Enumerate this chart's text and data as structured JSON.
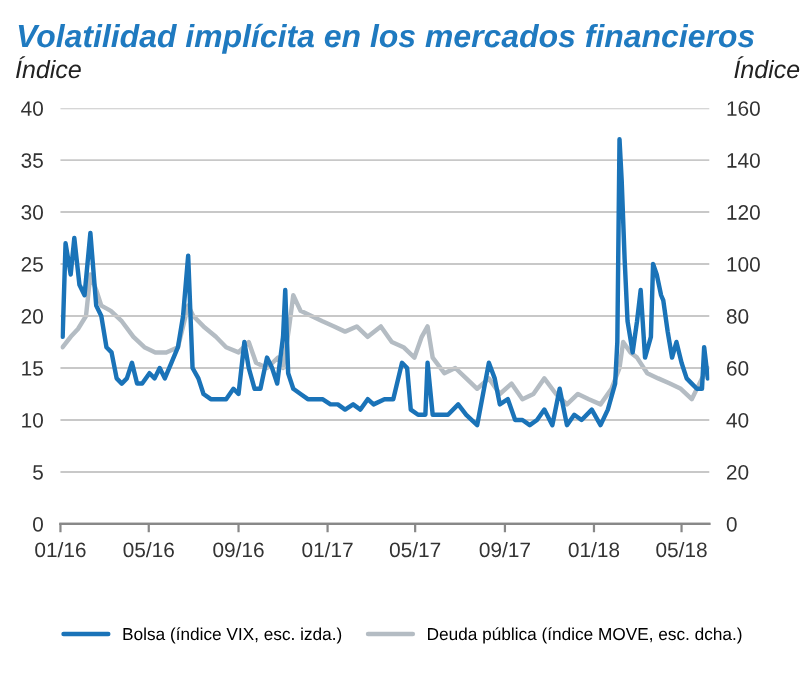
{
  "chart_data": {
    "type": "line",
    "title": "Volatilidad implícita en los mercados financieros",
    "ylabel": "Índice",
    "y2label": "Índice",
    "xlim": [
      "2016-01-01",
      "2018-06-08"
    ],
    "xticks": [
      {
        "value": "2016-01-01",
        "label": "01/16"
      },
      {
        "value": "2016-05-01",
        "label": "05/16"
      },
      {
        "value": "2016-09-01",
        "label": "09/16"
      },
      {
        "value": "2017-01-01",
        "label": "01/17"
      },
      {
        "value": "2017-05-01",
        "label": "05/17"
      },
      {
        "value": "2017-09-01",
        "label": "09/17"
      },
      {
        "value": "2018-01-01",
        "label": "01/18"
      },
      {
        "value": "2018-05-01",
        "label": "05/18"
      }
    ],
    "ylim": [
      0,
      40
    ],
    "yticks": [
      0,
      5,
      10,
      15,
      20,
      25,
      30,
      35,
      40
    ],
    "y2lim": [
      0,
      160
    ],
    "y2ticks": [
      0,
      20,
      40,
      60,
      80,
      100,
      120,
      140,
      160
    ],
    "grid": "y",
    "legend": "bottom",
    "line_style": "solid",
    "marker": "none",
    "series": [
      {
        "name": "Bolsa (índice VIX, esc. izda.)",
        "color": "#1a73b8",
        "axis": "y",
        "x": [
          "2016-01-04",
          "2016-01-08",
          "2016-01-15",
          "2016-01-20",
          "2016-01-27",
          "2016-02-03",
          "2016-02-11",
          "2016-02-19",
          "2016-02-26",
          "2016-03-04",
          "2016-03-11",
          "2016-03-18",
          "2016-03-25",
          "2016-04-01",
          "2016-04-08",
          "2016-04-15",
          "2016-04-22",
          "2016-05-02",
          "2016-05-09",
          "2016-05-16",
          "2016-05-23",
          "2016-06-01",
          "2016-06-10",
          "2016-06-17",
          "2016-06-24",
          "2016-06-30",
          "2016-07-08",
          "2016-07-15",
          "2016-07-25",
          "2016-08-05",
          "2016-08-15",
          "2016-08-25",
          "2016-09-01",
          "2016-09-09",
          "2016-09-15",
          "2016-09-23",
          "2016-10-01",
          "2016-10-10",
          "2016-10-17",
          "2016-10-24",
          "2016-11-01",
          "2016-11-04",
          "2016-11-08",
          "2016-11-15",
          "2016-11-25",
          "2016-12-05",
          "2016-12-15",
          "2016-12-25",
          "2017-01-05",
          "2017-01-15",
          "2017-01-25",
          "2017-02-05",
          "2017-02-15",
          "2017-02-25",
          "2017-03-05",
          "2017-03-20",
          "2017-04-01",
          "2017-04-13",
          "2017-04-20",
          "2017-04-25",
          "2017-05-05",
          "2017-05-15",
          "2017-05-18",
          "2017-05-25",
          "2017-06-05",
          "2017-06-15",
          "2017-06-29",
          "2017-07-10",
          "2017-07-25",
          "2017-08-10",
          "2017-08-18",
          "2017-08-25",
          "2017-09-05",
          "2017-09-15",
          "2017-09-25",
          "2017-10-05",
          "2017-10-15",
          "2017-10-25",
          "2017-11-05",
          "2017-11-15",
          "2017-11-25",
          "2017-12-05",
          "2017-12-15",
          "2017-12-29",
          "2018-01-10",
          "2018-01-20",
          "2018-01-30",
          "2018-02-02",
          "2018-02-05",
          "2018-02-08",
          "2018-02-12",
          "2018-02-16",
          "2018-02-23",
          "2018-03-01",
          "2018-03-06",
          "2018-03-12",
          "2018-03-20",
          "2018-03-23",
          "2018-03-28",
          "2018-04-03",
          "2018-04-06",
          "2018-04-12",
          "2018-04-18",
          "2018-04-24",
          "2018-05-01",
          "2018-05-08",
          "2018-05-15",
          "2018-05-22",
          "2018-05-29",
          "2018-06-01",
          "2018-06-06"
        ],
        "values": [
          18,
          27,
          24,
          27.5,
          23,
          22,
          28,
          21,
          20,
          17,
          16.5,
          14,
          13.5,
          14,
          15.5,
          13.5,
          13.5,
          14.5,
          14,
          15,
          14,
          15.5,
          17,
          20,
          25.8,
          15,
          14,
          12.5,
          12,
          12,
          12,
          13,
          12.5,
          17.5,
          15,
          13,
          13,
          16,
          15,
          13.5,
          18,
          22.5,
          14.5,
          13,
          12.5,
          12,
          12,
          12,
          11.5,
          11.5,
          11,
          11.5,
          11,
          12,
          11.5,
          12,
          12,
          15.5,
          15,
          11,
          10.5,
          10.5,
          15.5,
          10.5,
          10.5,
          10.5,
          11.5,
          10.5,
          9.5,
          15.5,
          14,
          11.5,
          12,
          10,
          10,
          9.5,
          10,
          11,
          9.5,
          13,
          9.5,
          10.5,
          10,
          11,
          9.5,
          11,
          13.5,
          17.5,
          37,
          33,
          25.5,
          19.5,
          16.5,
          19.5,
          22.5,
          16,
          18,
          25,
          24,
          22,
          21.5,
          18.5,
          16,
          17.5,
          15.5,
          14,
          13.5,
          13,
          13,
          17,
          14
        ]
      },
      {
        "name": "Deuda pública (índice MOVE, esc. dcha.)",
        "color": "#b4bcc3",
        "axis": "y2",
        "x": [
          "2016-01-04",
          "2016-01-15",
          "2016-01-25",
          "2016-02-05",
          "2016-02-11",
          "2016-02-19",
          "2016-02-26",
          "2016-03-10",
          "2016-03-25",
          "2016-04-10",
          "2016-04-25",
          "2016-05-10",
          "2016-05-25",
          "2016-06-10",
          "2016-06-24",
          "2016-07-01",
          "2016-07-15",
          "2016-08-01",
          "2016-08-15",
          "2016-09-01",
          "2016-09-15",
          "2016-09-25",
          "2016-10-10",
          "2016-10-25",
          "2016-11-01",
          "2016-11-09",
          "2016-11-15",
          "2016-11-25",
          "2016-12-10",
          "2016-12-25",
          "2017-01-10",
          "2017-01-25",
          "2017-02-10",
          "2017-02-25",
          "2017-03-15",
          "2017-03-30",
          "2017-04-15",
          "2017-04-30",
          "2017-05-10",
          "2017-05-18",
          "2017-05-25",
          "2017-06-10",
          "2017-06-25",
          "2017-07-10",
          "2017-07-25",
          "2017-08-10",
          "2017-08-25",
          "2017-09-10",
          "2017-09-25",
          "2017-10-10",
          "2017-10-25",
          "2017-11-10",
          "2017-11-25",
          "2017-12-10",
          "2017-12-25",
          "2018-01-10",
          "2018-01-25",
          "2018-02-05",
          "2018-02-10",
          "2018-02-20",
          "2018-03-01",
          "2018-03-15",
          "2018-03-30",
          "2018-04-15",
          "2018-04-30",
          "2018-05-15",
          "2018-05-29",
          "2018-06-06"
        ],
        "values": [
          68,
          72,
          75,
          80,
          96,
          90,
          84,
          82,
          78,
          72,
          68,
          66,
          66,
          68,
          84,
          80,
          76,
          72,
          68,
          66,
          70,
          62,
          60,
          64,
          60,
          75,
          88,
          82,
          80,
          78,
          76,
          74,
          76,
          72,
          76,
          70,
          68,
          64,
          72,
          76,
          64,
          58,
          60,
          56,
          52,
          56,
          50,
          54,
          48,
          50,
          56,
          50,
          46,
          50,
          48,
          46,
          52,
          60,
          70,
          66,
          64,
          58,
          56,
          54,
          52,
          48,
          56,
          60
        ]
      }
    ]
  }
}
